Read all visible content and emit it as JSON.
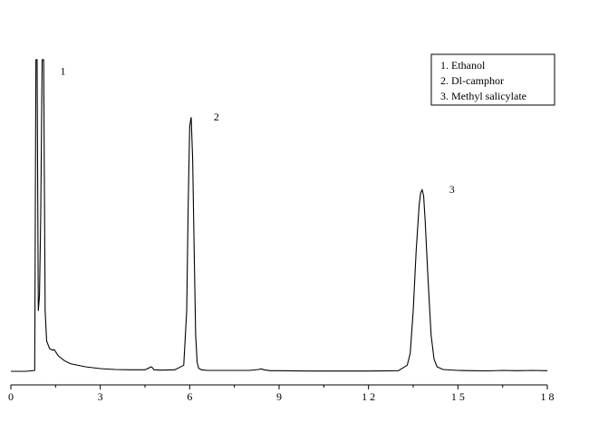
{
  "chart_data": {
    "type": "line",
    "title": "",
    "xlabel": "",
    "ylabel": "",
    "xlim": [
      0,
      18
    ],
    "ylim": [
      0,
      100
    ],
    "grid": false,
    "legend_position": "top-right",
    "x_ticks": [
      {
        "value": 0,
        "label": "0"
      },
      {
        "value": 3,
        "label": "3"
      },
      {
        "value": 6,
        "label": "6"
      },
      {
        "value": 9,
        "label": "9"
      },
      {
        "value": 12,
        "label": "1 2"
      },
      {
        "value": 15,
        "label": "1 5"
      },
      {
        "value": 18,
        "label": "1 8"
      }
    ],
    "legend": [
      "1.  Ethanol",
      "2.  Dl-camphor",
      "3.  Methyl salicylate"
    ],
    "peak_labels": [
      {
        "text": "1",
        "x": 1.75,
        "y": 98
      },
      {
        "text": "2",
        "x": 6.9,
        "y": 83
      },
      {
        "text": "3",
        "x": 14.8,
        "y": 59
      }
    ],
    "series": [
      {
        "x": [
          0,
          0.5,
          0.8,
          0.84,
          0.88,
          0.92,
          0.96,
          1.0,
          1.05,
          1.1,
          1.15,
          1.2,
          1.3,
          1.4,
          1.45,
          1.5,
          1.6,
          1.8,
          2.0,
          2.5,
          3.0,
          3.5,
          4.0,
          4.5,
          4.65,
          4.7,
          4.75,
          4.8,
          5.0,
          5.5,
          5.8,
          5.9,
          5.95,
          6.0,
          6.05,
          6.1,
          6.15,
          6.2,
          6.25,
          6.3,
          6.4,
          6.6,
          7.0,
          8.0,
          8.3,
          8.4,
          8.5,
          8.7,
          9.0,
          10.0,
          10.5,
          11.0,
          12.0,
          13.0,
          13.3,
          13.4,
          13.5,
          13.6,
          13.7,
          13.75,
          13.8,
          13.85,
          13.9,
          14.0,
          14.1,
          14.2,
          14.3,
          14.5,
          15.0,
          15.5,
          16.0,
          16.5,
          17.0,
          17.5,
          18.0
        ],
        "y": [
          0,
          0,
          0.3,
          103,
          103,
          20,
          25,
          50,
          103,
          103,
          20,
          10,
          7.5,
          7,
          7.2,
          6.5,
          5,
          3.5,
          2.5,
          1.5,
          0.9,
          0.6,
          0.5,
          0.5,
          1.2,
          1.5,
          1.2,
          0.5,
          0.4,
          0.5,
          2,
          20,
          55,
          81,
          84,
          70,
          40,
          12,
          3,
          1,
          0.5,
          0.3,
          0.3,
          0.3,
          0.6,
          0.8,
          0.5,
          0.2,
          0.2,
          0.1,
          0.1,
          0.1,
          0.1,
          0.2,
          2,
          6,
          20,
          40,
          55,
          59,
          60,
          58,
          50,
          30,
          12,
          4,
          1.5,
          0.6,
          0.3,
          0.2,
          0.15,
          0.3,
          0.2,
          0.3,
          0.2
        ]
      }
    ]
  }
}
